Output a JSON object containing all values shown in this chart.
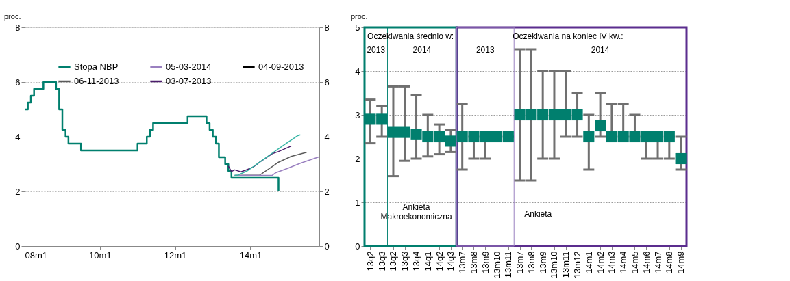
{
  "chart_data": [
    {
      "type": "line",
      "ylabel": "proc.",
      "xlim": [
        "2008-01",
        "2015-11"
      ],
      "xticks": [
        {
          "value": "2008-01",
          "label": "08m1"
        },
        {
          "value": "2010-01",
          "label": "10m1"
        },
        {
          "value": "2012-01",
          "label": "12m1"
        },
        {
          "value": "2014-01",
          "label": "14m1"
        }
      ],
      "ylim": [
        0,
        8
      ],
      "yticks": [
        0,
        2,
        4,
        6,
        8
      ],
      "y2lim": [
        0,
        8
      ],
      "y2ticks": [
        0,
        2,
        4,
        6,
        8
      ],
      "grid": "y",
      "legend": "top left",
      "series": [
        {
          "name": "Stopa NBP",
          "type": "step",
          "color": "#007f6e",
          "x": [
            "2008-01",
            "2008-02",
            "2008-03",
            "2008-04",
            "2008-07",
            "2008-11",
            "2008-12",
            "2009-01",
            "2009-02",
            "2009-03",
            "2009-07",
            "2011-01",
            "2011-04",
            "2011-05",
            "2011-06",
            "2012-05",
            "2012-11",
            "2012-12",
            "2013-01",
            "2013-02",
            "2013-03",
            "2013-05",
            "2013-06",
            "2013-07",
            "2014-10"
          ],
          "values": [
            5.0,
            5.25,
            5.5,
            5.75,
            6.0,
            5.75,
            5.0,
            4.25,
            4.0,
            3.75,
            3.5,
            3.75,
            4.0,
            4.25,
            4.5,
            4.75,
            4.5,
            4.25,
            4.0,
            3.75,
            3.25,
            3.0,
            2.75,
            2.5,
            2.0
          ]
        },
        {
          "name": "06-11-2013",
          "type": "line",
          "color": "#5a5a5a",
          "x": [
            "2013-08",
            "2014-04",
            "2014-08",
            "2014-10",
            "2015-02",
            "2015-07"
          ],
          "values": [
            2.59,
            2.6,
            2.91,
            3.07,
            3.28,
            3.43
          ]
        },
        {
          "name": "05-03-2014",
          "type": "line",
          "color": "#9a80c0",
          "x": [
            "2013-08",
            "2014-08",
            "2014-09",
            "2015-01",
            "2015-05",
            "2015-08",
            "2015-11"
          ],
          "values": [
            2.59,
            2.59,
            2.68,
            2.85,
            3.03,
            3.15,
            3.27
          ]
        },
        {
          "name": "03-07-2013",
          "type": "line",
          "color": "#4b1c6b",
          "x": [
            "2013-06",
            "2013-07",
            "2013-08",
            "2013-10",
            "2013-12",
            "2014-02",
            "2014-04",
            "2014-08",
            "2014-10",
            "2015-02"
          ],
          "values": [
            2.93,
            2.73,
            2.79,
            2.72,
            2.8,
            2.9,
            3.07,
            3.38,
            3.46,
            3.66
          ]
        },
        {
          "name": "04-09-2013",
          "type": "line",
          "color": "#000000"
        },
        {
          "type": "line",
          "color": "#35b5a5",
          "x": [
            "2013-08",
            "2013-09",
            "2013-12",
            "2014-04",
            "2014-08",
            "2014-12",
            "2015-04",
            "2015-05"
          ],
          "values": [
            2.59,
            2.6,
            2.75,
            3.07,
            3.4,
            3.72,
            4.03,
            4.07
          ]
        }
      ]
    },
    {
      "type": "scatter",
      "ylabel": "proc.",
      "marker": "square",
      "color": "#007f6e",
      "categories": [
        "13q2",
        "13q3",
        "13q2",
        "13q3",
        "13q4",
        "14q1",
        "14q2",
        "14q3",
        "13m7",
        "13m8",
        "13m9",
        "13m10",
        "13m11",
        "13m7",
        "13m8",
        "13m9",
        "13m10",
        "13m11",
        "13m12",
        "14m1",
        "14m2",
        "14m3",
        "14m4",
        "14m5",
        "14m6",
        "14m7",
        "14m8",
        "14m9"
      ],
      "values": [
        2.9,
        2.9,
        2.6,
        2.6,
        2.55,
        2.5,
        2.5,
        2.4,
        2.5,
        2.5,
        2.5,
        2.5,
        2.5,
        3.0,
        3.0,
        3.0,
        3.0,
        3.0,
        3.0,
        2.5,
        2.75,
        2.5,
        2.5,
        2.5,
        2.5,
        2.5,
        2.5,
        2.0
      ],
      "errors": [
        [
          2.35,
          3.35
        ],
        [
          2.5,
          3.2
        ],
        [
          1.6,
          3.65
        ],
        [
          1.95,
          3.65
        ],
        [
          2.0,
          3.45
        ],
        [
          2.05,
          3.0
        ],
        [
          2.1,
          2.78
        ],
        [
          2.15,
          2.65
        ],
        [
          1.75,
          3.25
        ],
        [
          2.0,
          2.5
        ],
        [
          2.0,
          2.5
        ],
        [
          2.5,
          2.5
        ],
        [
          2.5,
          2.5
        ],
        [
          1.5,
          4.5
        ],
        [
          1.5,
          4.5
        ],
        [
          2.0,
          4.0
        ],
        [
          2.0,
          4.0
        ],
        [
          2.5,
          4.0
        ],
        [
          2.5,
          3.5
        ],
        [
          1.75,
          3.0
        ],
        [
          2.5,
          3.5
        ],
        [
          2.5,
          3.25
        ],
        [
          2.5,
          3.25
        ],
        [
          2.5,
          3.0
        ],
        [
          2.0,
          2.5
        ],
        [
          2.0,
          2.5
        ],
        [
          2.0,
          2.5
        ],
        [
          1.75,
          2.5
        ]
      ],
      "ylim": [
        0,
        5
      ],
      "yticks": [
        0,
        1,
        2,
        3,
        4,
        5
      ],
      "grid": "y",
      "annotations": [
        "Oczekiwania średnio w:",
        "2013",
        "2014",
        "Oczekiwania na koniec IV kw.:",
        "2013",
        "2014",
        "Ankieta Makroekonomiczna",
        "Ankieta"
      ]
    }
  ]
}
